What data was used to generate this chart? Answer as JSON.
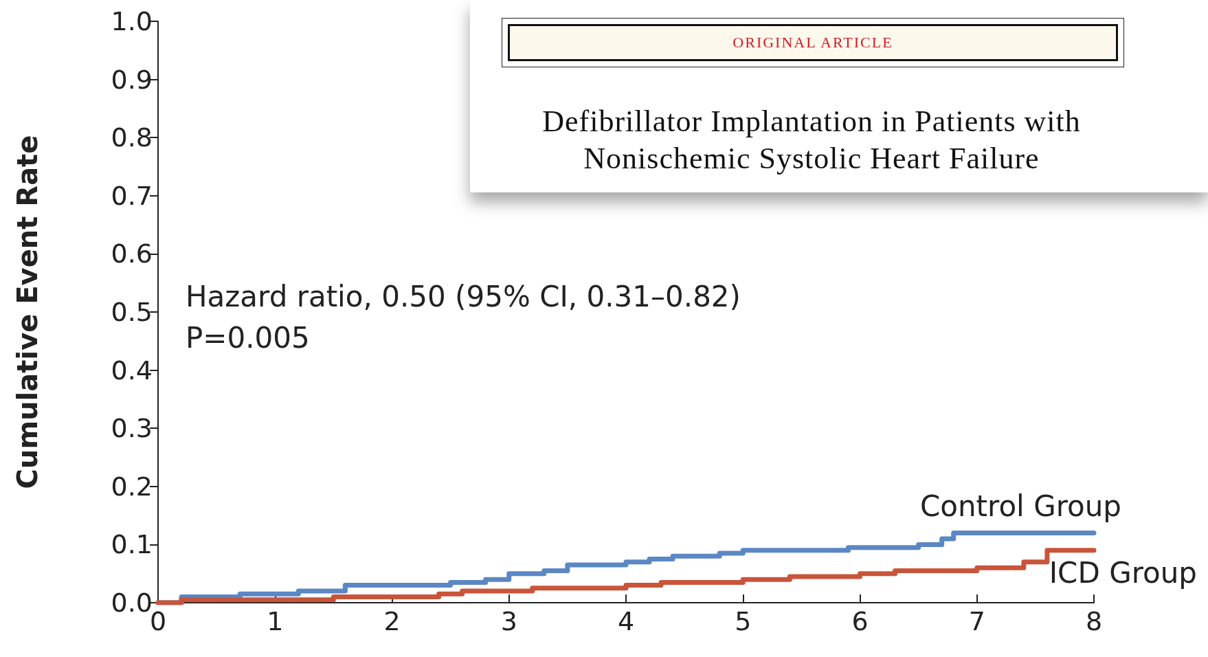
{
  "chart_data": {
    "type": "step",
    "title": "Defibrillator Implantation in Patients with Nonischemic Systolic Heart Failure",
    "subtitle": "ORIGINAL ARTICLE",
    "ylabel": "Cumulative Event Rate",
    "annotations": [
      "Hazard ratio, 0.50 (95% CI, 0.31–0.82)",
      "P=0.005"
    ],
    "series": [
      {
        "name": "Control Group",
        "color": "#5b87c5",
        "x": [
          0,
          0.2,
          0.7,
          1.2,
          1.6,
          2.5,
          2.8,
          3.0,
          3.3,
          3.5,
          4.0,
          4.2,
          4.4,
          4.8,
          5.0,
          5.9,
          6.5,
          6.7,
          6.8,
          8
        ],
        "values": [
          0,
          0.01,
          0.015,
          0.02,
          0.03,
          0.035,
          0.04,
          0.05,
          0.055,
          0.065,
          0.07,
          0.075,
          0.08,
          0.085,
          0.09,
          0.095,
          0.1,
          0.11,
          0.12,
          0.12
        ]
      },
      {
        "name": "ICD Group",
        "color": "#c8553a",
        "x": [
          0,
          0.2,
          1.5,
          2.4,
          2.6,
          3.2,
          4.0,
          4.3,
          5.0,
          5.4,
          6.0,
          6.3,
          7.0,
          7.4,
          7.6,
          8
        ],
        "values": [
          0,
          0.005,
          0.01,
          0.015,
          0.02,
          0.025,
          0.03,
          0.035,
          0.04,
          0.045,
          0.05,
          0.055,
          0.06,
          0.07,
          0.09,
          0.09
        ]
      }
    ],
    "xlim": [
      0,
      8
    ],
    "xticks": [
      0,
      1,
      2,
      3,
      4,
      5,
      6,
      7,
      8
    ],
    "ylim": [
      0,
      1.0
    ],
    "yticks": [
      {
        "value": 0,
        "label": "0.0"
      },
      {
        "value": 0.1,
        "label": "0.1"
      },
      {
        "value": 0.2,
        "label": "0.2"
      },
      {
        "value": 0.3,
        "label": "0.3"
      },
      {
        "value": 0.4,
        "label": "0.4"
      },
      {
        "value": 0.5,
        "label": "0.5"
      },
      {
        "value": 0.6,
        "label": "0.6"
      },
      {
        "value": 0.7,
        "label": "0.7"
      },
      {
        "value": 0.8,
        "label": "0.8"
      },
      {
        "value": 0.9,
        "label": "0.9"
      },
      {
        "value": 1.0,
        "label": "1.0"
      }
    ],
    "grid": false,
    "legend": false,
    "marker": "none",
    "line_style": "solid"
  }
}
